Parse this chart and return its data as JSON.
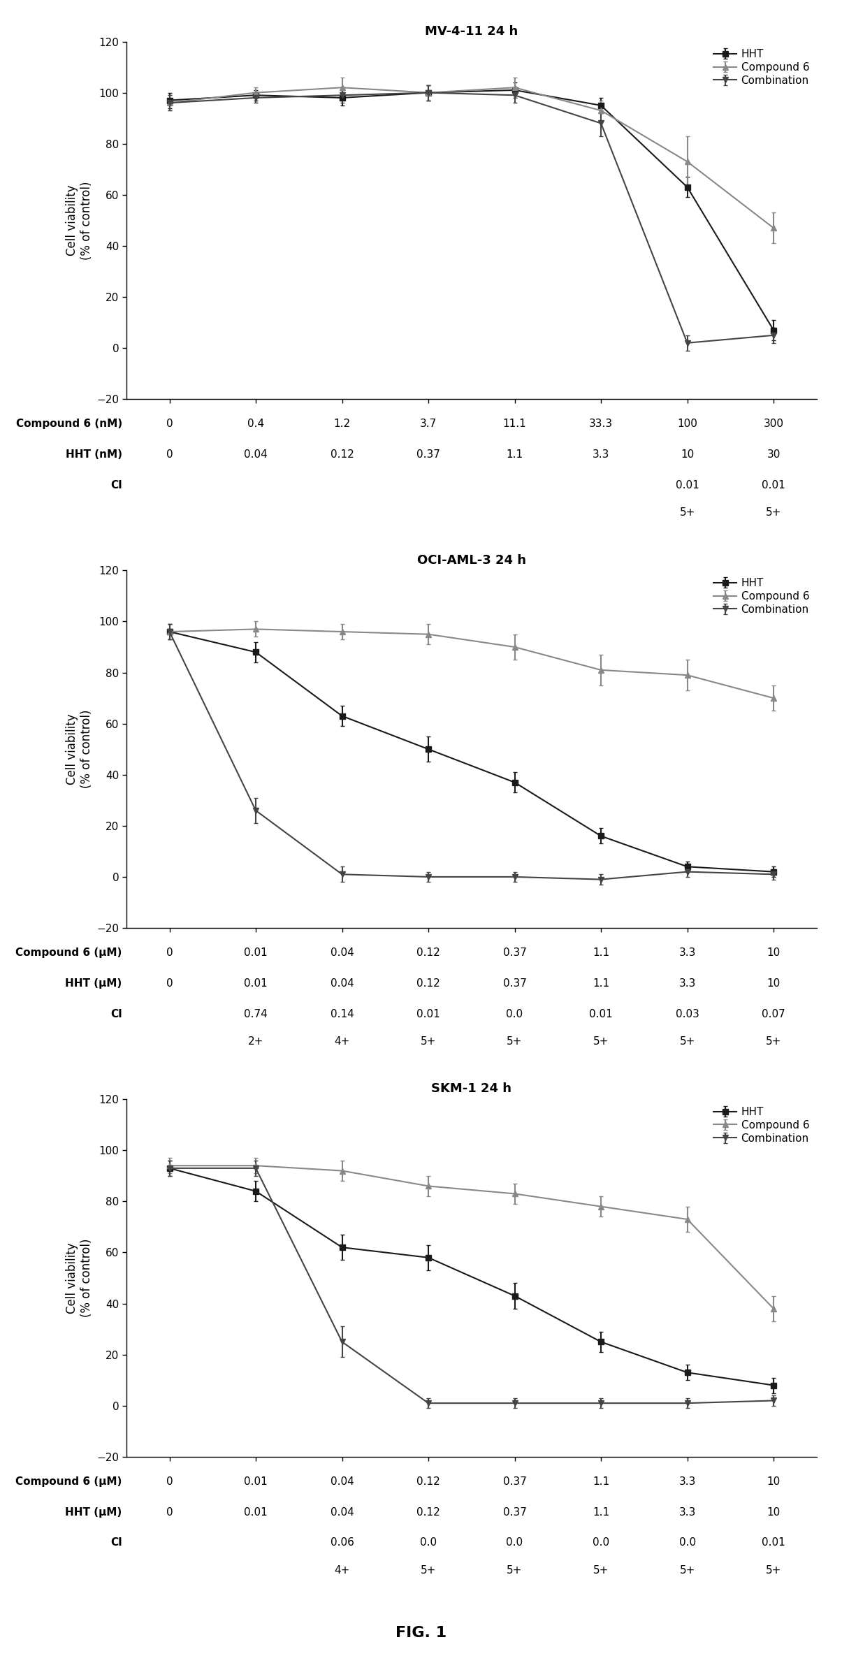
{
  "panels": [
    {
      "title": "MV-4-11 24 h",
      "x_positions": [
        0,
        1,
        2,
        3,
        4,
        5,
        6,
        7
      ],
      "hht_y": [
        97,
        99,
        98,
        100,
        101,
        95,
        63,
        7
      ],
      "hht_err": [
        3,
        2,
        3,
        3,
        3,
        3,
        4,
        4
      ],
      "comp6_y": [
        96,
        100,
        102,
        100,
        102,
        93,
        73,
        47
      ],
      "comp6_err": [
        3,
        2,
        4,
        3,
        4,
        4,
        10,
        6
      ],
      "combo_y": [
        96,
        98,
        99,
        100,
        99,
        88,
        2,
        5
      ],
      "combo_err": [
        3,
        2,
        3,
        3,
        3,
        5,
        3,
        3
      ],
      "xlabel_row1": "Compound 6 (nM)",
      "xlabel_row2": "HHT (nM)",
      "xlabel_row3": "CI",
      "xtick_labels_row1": [
        "0",
        "0.4",
        "1.2",
        "3.7",
        "11.1",
        "33.3",
        "100",
        "300"
      ],
      "xtick_labels_row2": [
        "0",
        "0.04",
        "0.12",
        "0.37",
        "1.1",
        "3.3",
        "10",
        "30"
      ],
      "xtick_labels_row3": [
        "",
        "",
        "",
        "",
        "",
        "",
        "0.01",
        "0.01"
      ],
      "xtick_labels_row4": [
        "",
        "",
        "",
        "",
        "",
        "",
        "5+",
        "5+"
      ]
    },
    {
      "title": "OCI-AML-3 24 h",
      "x_positions": [
        0,
        1,
        2,
        3,
        4,
        5,
        6,
        7
      ],
      "hht_y": [
        96,
        88,
        63,
        50,
        37,
        16,
        4,
        2
      ],
      "hht_err": [
        3,
        4,
        4,
        5,
        4,
        3,
        2,
        2
      ],
      "comp6_y": [
        96,
        97,
        96,
        95,
        90,
        81,
        79,
        70
      ],
      "comp6_err": [
        3,
        3,
        3,
        4,
        5,
        6,
        6,
        5
      ],
      "combo_y": [
        96,
        26,
        1,
        0,
        0,
        -1,
        2,
        1
      ],
      "combo_err": [
        3,
        5,
        3,
        2,
        2,
        2,
        2,
        2
      ],
      "xlabel_row1": "Compound 6 (μM)",
      "xlabel_row2": "HHT (μM)",
      "xlabel_row3": "CI",
      "xtick_labels_row1": [
        "0",
        "0.01",
        "0.04",
        "0.12",
        "0.37",
        "1.1",
        "3.3",
        "10"
      ],
      "xtick_labels_row2": [
        "0",
        "0.01",
        "0.04",
        "0.12",
        "0.37",
        "1.1",
        "3.3",
        "10"
      ],
      "xtick_labels_row3": [
        "",
        "0.74",
        "0.14",
        "0.01",
        "0.0",
        "0.01",
        "0.03",
        "0.07"
      ],
      "xtick_labels_row4": [
        "",
        "2+",
        "4+",
        "5+",
        "5+",
        "5+",
        "5+",
        "5+"
      ]
    },
    {
      "title": "SKM-1 24 h",
      "x_positions": [
        0,
        1,
        2,
        3,
        4,
        5,
        6,
        7
      ],
      "hht_y": [
        93,
        84,
        62,
        58,
        43,
        25,
        13,
        8
      ],
      "hht_err": [
        3,
        4,
        5,
        5,
        5,
        4,
        3,
        3
      ],
      "comp6_y": [
        94,
        94,
        92,
        86,
        83,
        78,
        73,
        38
      ],
      "comp6_err": [
        3,
        3,
        4,
        4,
        4,
        4,
        5,
        5
      ],
      "combo_y": [
        93,
        93,
        25,
        1,
        1,
        1,
        1,
        2
      ],
      "combo_err": [
        3,
        3,
        6,
        2,
        2,
        2,
        2,
        2
      ],
      "xlabel_row1": "Compound 6 (μM)",
      "xlabel_row2": "HHT (μM)",
      "xlabel_row3": "CI",
      "xtick_labels_row1": [
        "0",
        "0.01",
        "0.04",
        "0.12",
        "0.37",
        "1.1",
        "3.3",
        "10"
      ],
      "xtick_labels_row2": [
        "0",
        "0.01",
        "0.04",
        "0.12",
        "0.37",
        "1.1",
        "3.3",
        "10"
      ],
      "xtick_labels_row3": [
        "",
        "",
        "0.06",
        "0.0",
        "0.0",
        "0.0",
        "0.0",
        "0.01"
      ],
      "xtick_labels_row4": [
        "",
        "",
        "4+",
        "5+",
        "5+",
        "5+",
        "5+",
        "5+"
      ]
    }
  ],
  "ylim": [
    -20,
    120
  ],
  "yticks": [
    -20,
    0,
    20,
    40,
    60,
    80,
    100,
    120
  ],
  "ylabel": "Cell viability\n(% of control)",
  "color_hht": "#1a1a1a",
  "color_comp6": "#888888",
  "color_combo": "#444444",
  "marker_hht": "s",
  "marker_comp6": "^",
  "marker_combo": "v",
  "linewidth": 1.5,
  "markersize": 6,
  "fig_caption": "FIG. 1",
  "legend_labels": [
    "HHT",
    "Compound 6",
    "Combination"
  ],
  "label_fontsize": 11,
  "title_fontsize": 13
}
